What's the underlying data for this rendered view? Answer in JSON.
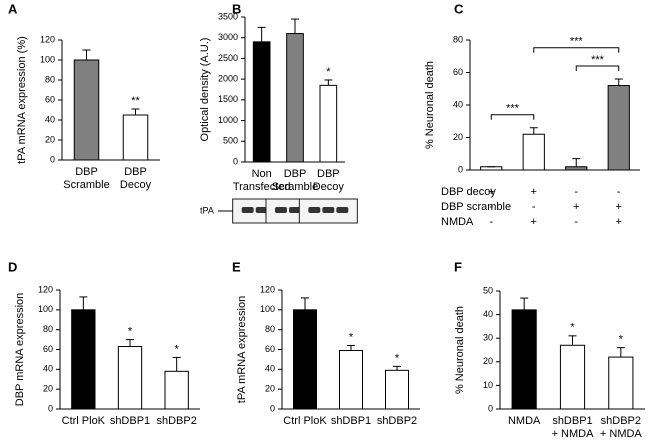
{
  "chart_data": [
    {
      "type": "bar",
      "panel": "A",
      "ylabel": "tPA mRNA expression (%)",
      "categories": [
        "DBP Scramble",
        "DBP Decoy"
      ],
      "values": [
        100,
        45
      ],
      "errors": [
        10,
        6
      ],
      "colors": [
        "#808080",
        "#ffffff"
      ],
      "ylim": [
        0,
        120
      ],
      "yticks": [
        0,
        20,
        40,
        60,
        80,
        100,
        120
      ],
      "annotations": [
        {
          "index": 1,
          "text": "**"
        }
      ]
    },
    {
      "type": "bar",
      "panel": "B",
      "ylabel": "Optical density (A.U.)",
      "categories": [
        "Non Transfected",
        "DBP Scramble",
        "DBP Decoy"
      ],
      "values": [
        2900,
        3100,
        1850
      ],
      "errors": [
        350,
        350,
        130
      ],
      "colors": [
        "#000000",
        "#808080",
        "#ffffff"
      ],
      "ylim": [
        0,
        3500
      ],
      "yticks": [
        0,
        500,
        1000,
        1500,
        2000,
        2500,
        3000,
        3500
      ],
      "annotations": [
        {
          "index": 2,
          "text": "*"
        }
      ],
      "blot_label": "tPA"
    },
    {
      "type": "bar",
      "panel": "C",
      "ylabel": "% Neuronal death",
      "categories": [
        null,
        null,
        null,
        null
      ],
      "values": [
        2,
        22,
        2,
        52
      ],
      "errors": [
        0,
        4,
        5,
        4
      ],
      "colors": [
        "#ffffff",
        "#ffffff",
        "#808080",
        "#808080"
      ],
      "ylim": [
        0,
        80
      ],
      "yticks": [
        0,
        20,
        40,
        60,
        80
      ],
      "brackets": [
        {
          "from": 0,
          "to": 1,
          "text": "***"
        },
        {
          "from": 2,
          "to": 3,
          "text": "***"
        },
        {
          "from": 1,
          "to": 3,
          "text": "***"
        }
      ],
      "conditions": [
        {
          "name": "DBP decoy",
          "signs": [
            "+",
            "+",
            "-",
            "-"
          ]
        },
        {
          "name": "DBP scramble",
          "signs": [
            "-",
            "-",
            "+",
            "+"
          ]
        },
        {
          "name": "NMDA",
          "signs": [
            "-",
            "+",
            "-",
            "+"
          ]
        }
      ]
    },
    {
      "type": "bar",
      "panel": "D",
      "ylabel": "DBP mRNA expression",
      "categories": [
        "Ctrl PloK",
        "shDBP1",
        "shDBP2"
      ],
      "values": [
        100,
        63,
        38
      ],
      "errors": [
        13,
        7,
        14
      ],
      "colors": [
        "#000000",
        "#ffffff",
        "#ffffff"
      ],
      "ylim": [
        0,
        120
      ],
      "yticks": [
        0,
        20,
        40,
        60,
        80,
        100,
        120
      ],
      "annotations": [
        {
          "index": 1,
          "text": "*"
        },
        {
          "index": 2,
          "text": "*"
        }
      ]
    },
    {
      "type": "bar",
      "panel": "E",
      "ylabel": "tPA mRNA expression",
      "categories": [
        "Ctrl PloK",
        "shDBP1",
        "shDBP2"
      ],
      "values": [
        100,
        59,
        39
      ],
      "errors": [
        12,
        5,
        4
      ],
      "colors": [
        "#000000",
        "#ffffff",
        "#ffffff"
      ],
      "ylim": [
        0,
        120
      ],
      "yticks": [
        0,
        20,
        40,
        60,
        80,
        100,
        120
      ],
      "annotations": [
        {
          "index": 1,
          "text": "*"
        },
        {
          "index": 2,
          "text": "*"
        }
      ]
    },
    {
      "type": "bar",
      "panel": "F",
      "ylabel": "% Neuronal death",
      "categories": [
        "NMDA",
        "shDBP1 + NMDA",
        "shDBP2 + NMDA"
      ],
      "values": [
        42,
        27,
        22
      ],
      "errors": [
        5,
        4,
        4
      ],
      "colors": [
        "#000000",
        "#ffffff",
        "#ffffff"
      ],
      "ylim": [
        0,
        50
      ],
      "yticks": [
        0,
        10,
        20,
        30,
        40,
        50
      ],
      "annotations": [
        {
          "index": 1,
          "text": "*"
        },
        {
          "index": 2,
          "text": "*"
        }
      ]
    }
  ]
}
